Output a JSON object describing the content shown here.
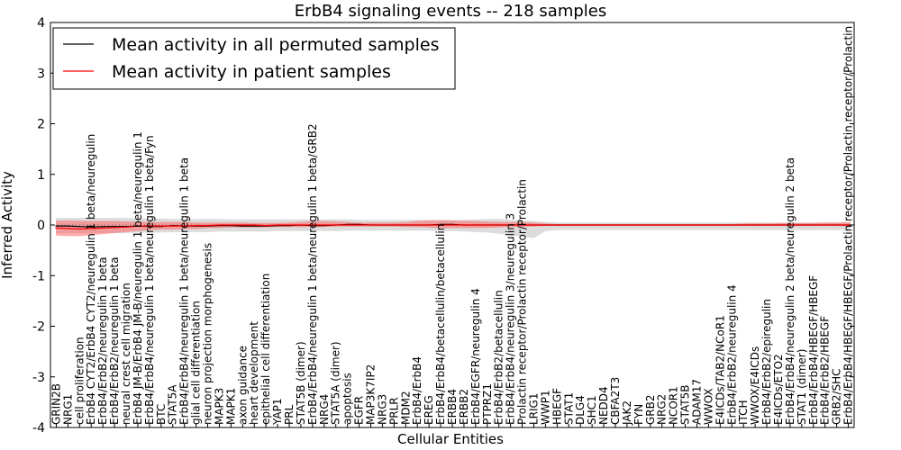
{
  "chart_data": {
    "type": "line",
    "title": "ErbB4 signaling events -- 218 samples",
    "xlabel": "Cellular Entities",
    "ylabel": "Inferred Activity",
    "ylim": [
      -4,
      4
    ],
    "yticks": [
      -4,
      -3,
      -2,
      -1,
      0,
      1,
      2,
      3,
      4
    ],
    "grid": false,
    "legend_position": "top-left",
    "categories": [
      "GRIN2B",
      "NRG1",
      "cell proliferation",
      "ErbB4 CYT2/ErbB4 CYT2/neuregulin 1 beta/neuregulin",
      "ErbB4/ErbB2/neuregulin 1 beta",
      "ErbB4/ErbB2/neuregulin 1 beta",
      "neural crest cell migration",
      "ErbB4 JM-B/ErbB4 JM-B/neuregulin 1 beta/neuregulin 1",
      "ErbB4/ErbB4/neuregulin 1 beta/neuregulin 1 beta/Fyn",
      "BTC",
      "STAT5A",
      "ErbB4/ErbB4/neuregulin 1 beta/neuregulin 1 beta",
      "glial cell differentiation",
      "neuron projection morphogenesis",
      "MAPK3",
      "MAPK1",
      "axon guidance",
      "heart development",
      "epithelial cell differentiation",
      "YAP1",
      "PRL",
      "STAT5B (dimer)",
      "ErbB4/ErbB4/neuregulin 1 beta/neuregulin 1 beta/GRB2",
      "NRG4",
      "STAT5A (dimer)",
      "apoptosis",
      "EGFR",
      "MAP3K7IP2",
      "NRG3",
      "PRLR",
      "MDM2",
      "ErbB4/ErbB4",
      "EREG",
      "ErbB4/ErbB4/betacellulin/betacellulin",
      "ERBB4",
      "ERBB2",
      "ErbB4/EGFR/neuregulin 4",
      "PTPRZ1",
      "ErbB4/ErbB2/betacellulin",
      "ErbB4/ErbB4/neuregulin 3/neuregulin 3",
      "Prolactin receptor/Prolactin receptor/Prolactin",
      "LRIG1",
      "WWP1",
      "HBEGF",
      "STAT1",
      "DLG4",
      "SHC1",
      "NEDD4",
      "CBFA2T3",
      "JAK2",
      "FYN",
      "GRB2",
      "NRG2",
      "NCOR1",
      "STAT5B",
      "ADAM17",
      "WWOX",
      "E4ICDs/TAB2/NCoR1",
      "ErbB4/ErbB2/neuregulin 4",
      "ITCH",
      "WWOX/E4ICDs",
      "ErbB4/ErbB2/epiregulin",
      "E4ICDs/ETO2",
      "ErbB4/ErbB4/neuregulin 2 beta/neuregulin 2 beta",
      "STAT1 (dimer)",
      "ErbB4/ErbB4/HBEGF/HBEGF",
      "ErbB4/ErbB2/HBEGF",
      "GRB2/SHC",
      "ErbB4/ErbB4/HBEGF/HBEGF/Prolactin receptor/Prolactin receptor/Prolactin"
    ],
    "series": [
      {
        "name": "Mean activity in all permuted samples",
        "color": "#000000",
        "values": [
          -0.02,
          -0.02,
          -0.03,
          -0.04,
          -0.03,
          -0.03,
          -0.03,
          -0.02,
          -0.03,
          -0.03,
          -0.01,
          -0.02,
          -0.02,
          -0.02,
          -0.01,
          -0.01,
          -0.02,
          -0.02,
          -0.02,
          -0.01,
          -0.01,
          0.0,
          -0.01,
          -0.01,
          0.0,
          0.01,
          0.01,
          0.0,
          0.0,
          0.0,
          0.0,
          0.0,
          0.0,
          0.01,
          0.01,
          0.0,
          0.0,
          0.0,
          0.0,
          0.0,
          0.0,
          0.0,
          0.0,
          0.0,
          0.0,
          0.0,
          0.0,
          0.0,
          0.0,
          0.0,
          0.0,
          0.0,
          0.0,
          0.0,
          0.0,
          0.0,
          0.0,
          0.0,
          0.0,
          0.0,
          0.0,
          0.0,
          0.0,
          0.0,
          0.0,
          0.0,
          0.0,
          0.0,
          0.0
        ],
        "band_low": [
          -0.16,
          -0.16,
          -0.16,
          -0.16,
          -0.16,
          -0.16,
          -0.16,
          -0.15,
          -0.15,
          -0.15,
          -0.14,
          -0.14,
          -0.14,
          -0.14,
          -0.13,
          -0.13,
          -0.13,
          -0.13,
          -0.13,
          -0.12,
          -0.12,
          -0.12,
          -0.12,
          -0.12,
          -0.12,
          -0.11,
          -0.11,
          -0.11,
          -0.11,
          -0.11,
          -0.11,
          -0.11,
          -0.11,
          -0.12,
          -0.12,
          -0.13,
          -0.14,
          -0.15,
          -0.17,
          -0.2,
          -0.23,
          -0.26,
          -0.12,
          -0.1,
          -0.1,
          -0.1,
          -0.1,
          -0.1,
          -0.1,
          -0.1,
          -0.1,
          -0.1,
          -0.1,
          -0.1,
          -0.1,
          -0.1,
          -0.1,
          -0.1,
          -0.1,
          -0.1,
          -0.1,
          -0.1,
          -0.1,
          -0.1,
          -0.1,
          -0.1,
          -0.1,
          -0.1,
          -0.1
        ],
        "band_high": [
          0.14,
          0.14,
          0.14,
          0.14,
          0.14,
          0.14,
          0.14,
          0.13,
          0.13,
          0.13,
          0.12,
          0.12,
          0.12,
          0.12,
          0.12,
          0.11,
          0.11,
          0.11,
          0.11,
          0.11,
          0.11,
          0.11,
          0.11,
          0.11,
          0.11,
          0.11,
          0.1,
          0.1,
          0.1,
          0.1,
          0.1,
          0.1,
          0.1,
          0.1,
          0.1,
          0.1,
          0.11,
          0.12,
          0.12,
          0.1,
          0.09,
          0.08,
          0.06,
          0.05,
          0.05,
          0.05,
          0.05,
          0.05,
          0.05,
          0.05,
          0.05,
          0.05,
          0.05,
          0.05,
          0.05,
          0.05,
          0.05,
          0.05,
          0.05,
          0.05,
          0.05,
          0.05,
          0.05,
          0.05,
          0.05,
          0.05,
          0.05,
          0.05,
          0.05
        ]
      },
      {
        "name": "Mean activity in patient samples",
        "color": "#ff0000",
        "values": [
          -0.06,
          -0.07,
          -0.08,
          -0.07,
          -0.06,
          -0.05,
          -0.04,
          -0.02,
          -0.02,
          -0.02,
          -0.02,
          -0.02,
          -0.01,
          -0.01,
          0.0,
          0.0,
          0.0,
          0.0,
          -0.01,
          0.0,
          0.0,
          0.0,
          0.0,
          0.0,
          0.0,
          0.0,
          0.0,
          0.0,
          0.0,
          0.0,
          0.0,
          0.0,
          0.0,
          0.0,
          0.0,
          0.0,
          0.0,
          0.0,
          0.0,
          0.0,
          0.0,
          0.0,
          0.0,
          0.0,
          0.0,
          0.0,
          0.0,
          0.0,
          0.0,
          0.0,
          0.0,
          0.0,
          0.0,
          0.0,
          0.0,
          0.0,
          0.0,
          0.0,
          0.0,
          0.0,
          0.0,
          0.0,
          0.0,
          0.0,
          0.0,
          0.0,
          0.0,
          0.0,
          0.0
        ],
        "band_low": [
          -0.21,
          -0.22,
          -0.22,
          -0.2,
          -0.18,
          -0.16,
          -0.14,
          -0.12,
          -0.1,
          -0.09,
          -0.09,
          -0.08,
          -0.08,
          -0.06,
          -0.06,
          -0.05,
          -0.05,
          -0.05,
          -0.05,
          -0.04,
          -0.04,
          -0.04,
          -0.04,
          -0.04,
          -0.03,
          -0.03,
          -0.03,
          -0.03,
          -0.03,
          -0.03,
          -0.04,
          -0.04,
          -0.05,
          -0.06,
          -0.06,
          -0.06,
          -0.06,
          -0.06,
          -0.05,
          -0.04,
          -0.04,
          -0.03,
          -0.02,
          -0.02,
          -0.02,
          -0.02,
          -0.02,
          -0.02,
          -0.02,
          -0.02,
          -0.02,
          -0.02,
          -0.02,
          -0.02,
          -0.02,
          -0.02,
          -0.02,
          -0.02,
          -0.02,
          -0.02,
          -0.02,
          -0.02,
          -0.02,
          -0.02,
          -0.02,
          -0.02,
          -0.02,
          -0.02,
          -0.03
        ],
        "band_high": [
          0.08,
          0.09,
          0.08,
          0.08,
          0.08,
          0.08,
          0.07,
          0.07,
          0.06,
          0.06,
          0.06,
          0.06,
          0.05,
          0.05,
          0.05,
          0.05,
          0.05,
          0.04,
          0.04,
          0.04,
          0.05,
          0.06,
          0.08,
          0.08,
          0.07,
          0.06,
          0.05,
          0.05,
          0.05,
          0.05,
          0.06,
          0.08,
          0.09,
          0.09,
          0.09,
          0.08,
          0.08,
          0.07,
          0.06,
          0.06,
          0.06,
          0.05,
          0.03,
          0.02,
          0.02,
          0.02,
          0.02,
          0.02,
          0.02,
          0.02,
          0.02,
          0.02,
          0.02,
          0.02,
          0.02,
          0.02,
          0.02,
          0.02,
          0.02,
          0.03,
          0.03,
          0.03,
          0.04,
          0.04,
          0.04,
          0.04,
          0.05,
          0.05,
          0.06
        ]
      }
    ]
  }
}
